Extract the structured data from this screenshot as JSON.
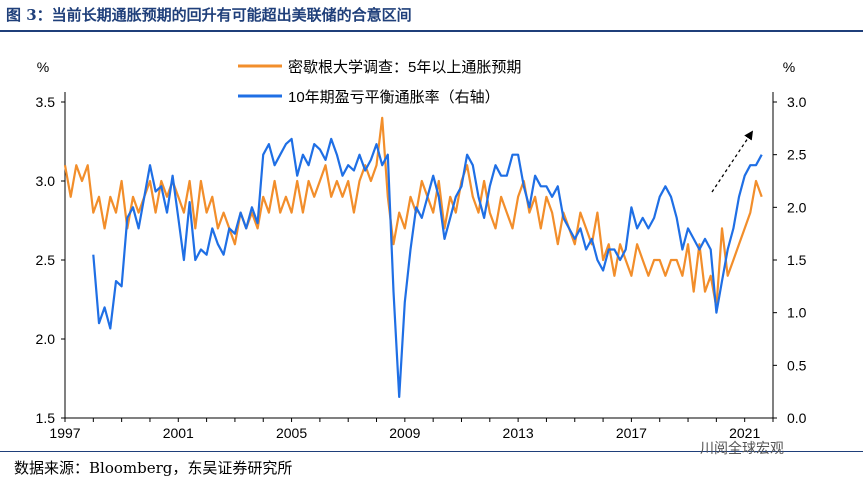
{
  "figure": {
    "title": "图 3：当前长期通胀预期的回升有可能超出美联储的合意区间",
    "source": "数据来源：Bloomberg，东吴证券研究所",
    "watermark": "川阅全球宏观"
  },
  "colors": {
    "michigan": "#f28e2b",
    "breakeven": "#1f6fe5",
    "arrow": "#000000"
  },
  "chart_data": {
    "type": "line",
    "xlim": [
      1997,
      2022
    ],
    "xticks": [
      1997,
      2001,
      2005,
      2009,
      2013,
      2017,
      2021
    ],
    "ylim": [
      1.5,
      3.5
    ],
    "yticks": [
      "1.5",
      "2.0",
      "2.5",
      "3.0",
      "3.5"
    ],
    "ylabel": "%",
    "ylim_right": [
      0.0,
      3.0
    ],
    "yticks_right": [
      "0.0",
      "0.5",
      "1.0",
      "1.5",
      "2.0",
      "2.5",
      "3.0"
    ],
    "ylabel_right": "%",
    "legend_position": "top-center",
    "annotation": "dashed arrow pointing up-right near 2020-2021",
    "series": [
      {
        "name": "密歇根大学调查：5年以上通胀预期",
        "axis": "left",
        "x": [
          1997.0,
          1997.2,
          1997.4,
          1997.6,
          1997.8,
          1998.0,
          1998.2,
          1998.4,
          1998.6,
          1998.8,
          1999.0,
          1999.2,
          1999.4,
          1999.6,
          1999.8,
          2000.0,
          2000.2,
          2000.4,
          2000.6,
          2000.8,
          2001.0,
          2001.2,
          2001.4,
          2001.6,
          2001.8,
          2002.0,
          2002.2,
          2002.4,
          2002.6,
          2002.8,
          2003.0,
          2003.2,
          2003.4,
          2003.6,
          2003.8,
          2004.0,
          2004.2,
          2004.4,
          2004.6,
          2004.8,
          2005.0,
          2005.2,
          2005.4,
          2005.6,
          2005.8,
          2006.0,
          2006.2,
          2006.4,
          2006.6,
          2006.8,
          2007.0,
          2007.2,
          2007.4,
          2007.6,
          2007.8,
          2008.0,
          2008.2,
          2008.4,
          2008.6,
          2008.8,
          2009.0,
          2009.2,
          2009.4,
          2009.6,
          2009.8,
          2010.0,
          2010.2,
          2010.4,
          2010.6,
          2010.8,
          2011.0,
          2011.2,
          2011.4,
          2011.6,
          2011.8,
          2012.0,
          2012.2,
          2012.4,
          2012.6,
          2012.8,
          2013.0,
          2013.2,
          2013.4,
          2013.6,
          2013.8,
          2014.0,
          2014.2,
          2014.4,
          2014.6,
          2014.8,
          2015.0,
          2015.2,
          2015.4,
          2015.6,
          2015.8,
          2016.0,
          2016.2,
          2016.4,
          2016.6,
          2016.8,
          2017.0,
          2017.2,
          2017.4,
          2017.6,
          2017.8,
          2018.0,
          2018.2,
          2018.4,
          2018.6,
          2018.8,
          2019.0,
          2019.2,
          2019.4,
          2019.6,
          2019.8,
          2020.0,
          2020.2,
          2020.4,
          2020.6,
          2020.8,
          2021.0,
          2021.2,
          2021.4,
          2021.6
        ],
        "values": [
          3.1,
          2.9,
          3.1,
          3.0,
          3.1,
          2.8,
          2.9,
          2.7,
          2.9,
          2.8,
          3.0,
          2.7,
          2.9,
          2.8,
          2.9,
          3.0,
          2.8,
          3.0,
          2.9,
          3.0,
          2.9,
          2.8,
          3.0,
          2.7,
          3.0,
          2.8,
          2.9,
          2.7,
          2.8,
          2.7,
          2.6,
          2.8,
          2.7,
          2.8,
          2.7,
          2.9,
          2.8,
          3.0,
          2.8,
          2.9,
          2.8,
          3.0,
          2.8,
          3.0,
          2.9,
          3.0,
          3.1,
          2.9,
          3.0,
          2.9,
          3.0,
          2.8,
          3.0,
          3.1,
          3.0,
          3.1,
          3.4,
          2.9,
          2.6,
          2.8,
          2.7,
          2.9,
          2.8,
          3.0,
          2.9,
          2.8,
          3.0,
          2.7,
          2.9,
          2.8,
          3.0,
          3.1,
          2.9,
          2.8,
          3.0,
          2.8,
          2.7,
          2.9,
          2.8,
          2.7,
          2.9,
          3.0,
          2.8,
          2.9,
          2.7,
          2.9,
          2.8,
          2.6,
          2.8,
          2.7,
          2.6,
          2.8,
          2.7,
          2.6,
          2.8,
          2.5,
          2.6,
          2.4,
          2.6,
          2.5,
          2.4,
          2.6,
          2.5,
          2.4,
          2.5,
          2.5,
          2.4,
          2.5,
          2.5,
          2.4,
          2.6,
          2.3,
          2.6,
          2.3,
          2.4,
          2.2,
          2.7,
          2.4,
          2.5,
          2.6,
          2.7,
          2.8,
          3.0,
          2.9
        ]
      },
      {
        "name": "10年期盈亏平衡通胀率（右轴）",
        "axis": "right",
        "x": [
          1998.0,
          1998.2,
          1998.4,
          1998.6,
          1998.8,
          1999.0,
          1999.2,
          1999.4,
          1999.6,
          1999.8,
          2000.0,
          2000.2,
          2000.4,
          2000.6,
          2000.8,
          2001.0,
          2001.2,
          2001.4,
          2001.6,
          2001.8,
          2002.0,
          2002.2,
          2002.4,
          2002.6,
          2002.8,
          2003.0,
          2003.2,
          2003.4,
          2003.6,
          2003.8,
          2004.0,
          2004.2,
          2004.4,
          2004.6,
          2004.8,
          2005.0,
          2005.2,
          2005.4,
          2005.6,
          2005.8,
          2006.0,
          2006.2,
          2006.4,
          2006.6,
          2006.8,
          2007.0,
          2007.2,
          2007.4,
          2007.6,
          2007.8,
          2008.0,
          2008.2,
          2008.4,
          2008.6,
          2008.8,
          2009.0,
          2009.2,
          2009.4,
          2009.6,
          2009.8,
          2010.0,
          2010.2,
          2010.4,
          2010.6,
          2010.8,
          2011.0,
          2011.2,
          2011.4,
          2011.6,
          2011.8,
          2012.0,
          2012.2,
          2012.4,
          2012.6,
          2012.8,
          2013.0,
          2013.2,
          2013.4,
          2013.6,
          2013.8,
          2014.0,
          2014.2,
          2014.4,
          2014.6,
          2014.8,
          2015.0,
          2015.2,
          2015.4,
          2015.6,
          2015.8,
          2016.0,
          2016.2,
          2016.4,
          2016.6,
          2016.8,
          2017.0,
          2017.2,
          2017.4,
          2017.6,
          2017.8,
          2018.0,
          2018.2,
          2018.4,
          2018.6,
          2018.8,
          2019.0,
          2019.2,
          2019.4,
          2019.6,
          2019.8,
          2020.0,
          2020.2,
          2020.4,
          2020.6,
          2020.8,
          2021.0,
          2021.2,
          2021.4,
          2021.6
        ],
        "values": [
          1.55,
          0.9,
          1.05,
          0.85,
          1.3,
          1.25,
          1.9,
          2.0,
          1.8,
          2.1,
          2.4,
          2.15,
          2.2,
          1.95,
          2.3,
          1.9,
          1.5,
          2.05,
          1.5,
          1.6,
          1.55,
          1.8,
          1.65,
          1.55,
          1.8,
          1.75,
          1.95,
          1.8,
          2.0,
          1.85,
          2.5,
          2.6,
          2.4,
          2.5,
          2.6,
          2.65,
          2.3,
          2.5,
          2.4,
          2.6,
          2.55,
          2.45,
          2.65,
          2.5,
          2.3,
          2.4,
          2.35,
          2.5,
          2.35,
          2.45,
          2.6,
          2.4,
          2.5,
          1.2,
          0.2,
          1.1,
          1.6,
          2.0,
          1.9,
          2.1,
          2.3,
          2.1,
          1.7,
          1.9,
          2.1,
          2.2,
          2.5,
          2.4,
          2.1,
          1.9,
          2.2,
          2.4,
          2.3,
          2.3,
          2.5,
          2.5,
          2.2,
          2.0,
          2.3,
          2.2,
          2.2,
          2.1,
          2.2,
          1.9,
          1.8,
          1.7,
          1.8,
          1.6,
          1.7,
          1.5,
          1.4,
          1.6,
          1.6,
          1.5,
          1.6,
          2.0,
          1.8,
          1.9,
          1.8,
          1.9,
          2.1,
          2.2,
          2.1,
          1.9,
          1.6,
          1.8,
          1.7,
          1.6,
          1.7,
          1.6,
          1.0,
          1.3,
          1.6,
          1.8,
          2.1,
          2.3,
          2.4,
          2.4,
          2.5
        ]
      }
    ]
  }
}
